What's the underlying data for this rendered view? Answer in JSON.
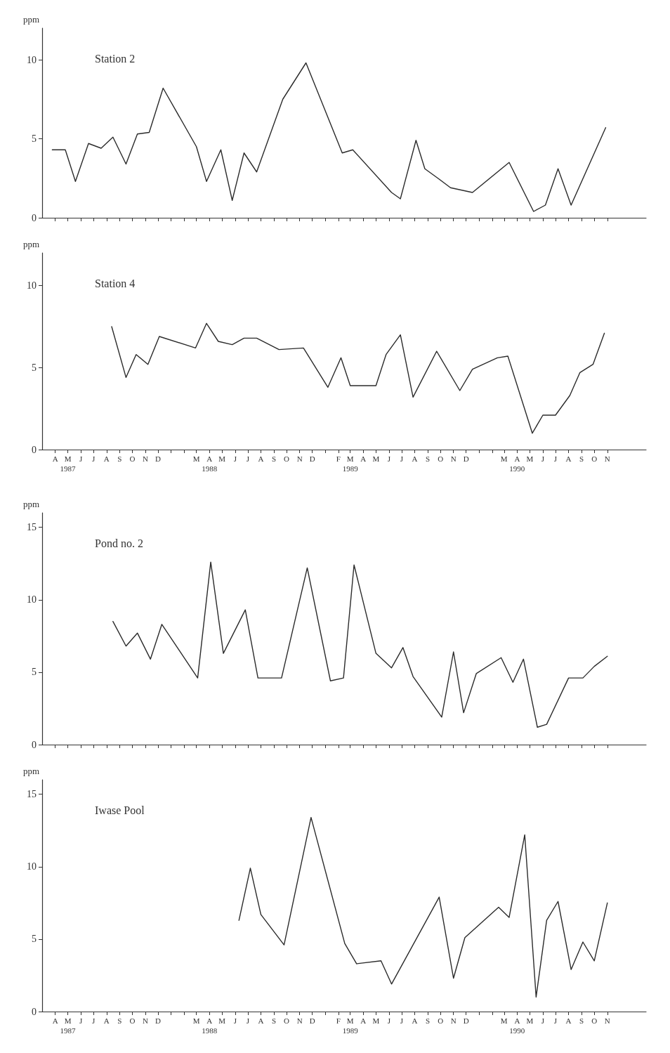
{
  "chart_data": [
    {
      "type": "line",
      "title": "Station 2",
      "ylabel": "ppm",
      "color": "#2b2b2b",
      "tick_labels": "y",
      "x": [
        "1987-03-25",
        "1987-04-25",
        "1987-05-19",
        "1987-06-19",
        "1987-07-19",
        "1987-08-16",
        "1987-09-16",
        "1987-10-13",
        "1987-11-10",
        "1987-12-13",
        "1988-03-01",
        "1988-03-25",
        "1988-04-28",
        "1988-05-25",
        "1988-06-22",
        "1988-07-22",
        "1988-09-22",
        "1988-11-16",
        "1989-02-10",
        "1989-03-07",
        "1989-06-07",
        "1989-06-28",
        "1989-08-04",
        "1989-08-25",
        "1989-09-25",
        "1989-10-25",
        "1989-12-16",
        "1990-03-13",
        "1990-05-10",
        "1990-06-07",
        "1990-07-07",
        "1990-08-07",
        "1990-10-28"
      ],
      "values": [
        4.3,
        4.3,
        2.3,
        4.7,
        4.4,
        5.1,
        3.4,
        5.3,
        5.4,
        8.2,
        4.5,
        2.3,
        4.3,
        1.1,
        4.1,
        2.9,
        7.5,
        9.8,
        4.1,
        4.3,
        1.6,
        1.2,
        4.9,
        3.1,
        2.5,
        1.9,
        1.6,
        3.5,
        0.4,
        0.8,
        3.1,
        0.8,
        5.7
      ],
      "xlim": [
        "1987-03",
        "1991-02"
      ],
      "ylim": [
        0,
        12
      ],
      "yticks": [
        0,
        5,
        10
      ],
      "xticks": [
        "1987-04",
        "1987-05",
        "1987-06",
        "1987-07",
        "1987-08",
        "1987-09",
        "1987-10",
        "1987-11",
        "1987-12",
        "1988-01",
        "1988-02",
        "1988-03",
        "1988-04",
        "1988-05",
        "1988-06",
        "1988-07",
        "1988-08",
        "1988-09",
        "1988-10",
        "1988-11",
        "1988-12",
        "1989-01",
        "1989-02",
        "1989-03",
        "1989-04",
        "1989-05",
        "1989-06",
        "1989-07",
        "1989-08",
        "1989-09",
        "1989-10",
        "1989-11",
        "1989-12",
        "1990-01",
        "1990-02",
        "1990-03",
        "1990-04",
        "1990-05",
        "1990-06",
        "1990-07",
        "1990-08",
        "1990-09",
        "1990-10",
        "1990-11"
      ]
    },
    {
      "type": "line",
      "title": "Station 4",
      "ylabel": "ppm",
      "color": "#2b2b2b",
      "x": [
        "1987-08-13",
        "1987-09-16",
        "1987-10-10",
        "1987-11-07",
        "1987-12-04",
        "1988-02-28",
        "1988-03-25",
        "1988-04-22",
        "1988-05-25",
        "1988-06-22",
        "1988-07-22",
        "1988-09-13",
        "1988-11-10",
        "1989-01-07",
        "1989-02-07",
        "1989-03-01",
        "1989-05-01",
        "1989-05-25",
        "1989-06-28",
        "1989-07-28",
        "1989-09-22",
        "1989-11-16",
        "1989-12-16",
        "1990-02-13",
        "1990-03-10",
        "1990-05-07",
        "1990-06-01",
        "1990-07-01",
        "1990-08-04",
        "1990-08-28",
        "1990-09-28",
        "1990-10-25"
      ],
      "values": [
        7.5,
        4.4,
        5.8,
        5.2,
        6.9,
        6.2,
        7.7,
        6.6,
        6.4,
        6.8,
        6.8,
        6.1,
        6.2,
        3.8,
        5.6,
        3.9,
        3.9,
        5.8,
        7.0,
        3.2,
        6.0,
        3.6,
        4.9,
        5.6,
        5.7,
        1.0,
        2.1,
        2.1,
        3.3,
        4.7,
        5.2,
        7.1
      ],
      "xlim": [
        "1987-03",
        "1991-02"
      ],
      "ylim": [
        0,
        12
      ],
      "yticks": [
        0,
        5,
        10
      ],
      "xticks": [
        {
          "value": "1987-04",
          "label": "A"
        },
        {
          "value": "1987-05",
          "label": "M\n1987"
        },
        {
          "value": "1987-06",
          "label": "J"
        },
        {
          "value": "1987-07",
          "label": "J"
        },
        {
          "value": "1987-08",
          "label": "A"
        },
        {
          "value": "1987-09",
          "label": "S"
        },
        {
          "value": "1987-10",
          "label": "O"
        },
        {
          "value": "1987-11",
          "label": "N"
        },
        {
          "value": "1987-12",
          "label": "D"
        },
        {
          "value": "1988-01",
          "label": null
        },
        {
          "value": "1988-02",
          "label": null
        },
        {
          "value": "1988-03",
          "label": "M"
        },
        {
          "value": "1988-04",
          "label": "A\n1988"
        },
        {
          "value": "1988-05",
          "label": "M"
        },
        {
          "value": "1988-06",
          "label": "J"
        },
        {
          "value": "1988-07",
          "label": "J"
        },
        {
          "value": "1988-08",
          "label": "A"
        },
        {
          "value": "1988-09",
          "label": "S"
        },
        {
          "value": "1988-10",
          "label": "O"
        },
        {
          "value": "1988-11",
          "label": "N"
        },
        {
          "value": "1988-12",
          "label": "D"
        },
        {
          "value": "1989-01",
          "label": null
        },
        {
          "value": "1989-02",
          "label": "F"
        },
        {
          "value": "1989-03",
          "label": "M\n1989"
        },
        {
          "value": "1989-04",
          "label": "A"
        },
        {
          "value": "1989-05",
          "label": "M"
        },
        {
          "value": "1989-06",
          "label": "J"
        },
        {
          "value": "1989-07",
          "label": "J"
        },
        {
          "value": "1989-08",
          "label": "A"
        },
        {
          "value": "1989-09",
          "label": "S"
        },
        {
          "value": "1989-10",
          "label": "O"
        },
        {
          "value": "1989-11",
          "label": "N"
        },
        {
          "value": "1989-12",
          "label": "D"
        },
        {
          "value": "1990-01",
          "label": null
        },
        {
          "value": "1990-02",
          "label": null
        },
        {
          "value": "1990-03",
          "label": "M"
        },
        {
          "value": "1990-04",
          "label": "A\n1990"
        },
        {
          "value": "1990-05",
          "label": "M"
        },
        {
          "value": "1990-06",
          "label": "J"
        },
        {
          "value": "1990-07",
          "label": "J"
        },
        {
          "value": "1990-08",
          "label": "A"
        },
        {
          "value": "1990-09",
          "label": "S"
        },
        {
          "value": "1990-10",
          "label": "O"
        },
        {
          "value": "1990-11",
          "label": "N"
        }
      ]
    },
    {
      "type": "line",
      "title": "Pond no. 2",
      "ylabel": "ppm",
      "color": "#2b2b2b",
      "tick_labels": "y",
      "x": [
        "1987-08-16",
        "1987-09-16",
        "1987-10-13",
        "1987-11-13",
        "1987-12-10",
        "1988-03-04",
        "1988-04-04",
        "1988-05-04",
        "1988-06-25",
        "1988-07-25",
        "1988-09-19",
        "1988-11-19",
        "1989-01-13",
        "1989-02-13",
        "1989-03-10",
        "1989-05-01",
        "1989-06-07",
        "1989-07-04",
        "1989-07-28",
        "1989-10-04",
        "1989-11-01",
        "1989-11-25",
        "1989-12-25",
        "1990-02-22",
        "1990-03-22",
        "1990-04-16",
        "1990-05-19",
        "1990-06-10",
        "1990-08-01",
        "1990-09-04",
        "1990-10-01",
        "1990-11-01"
      ],
      "values": [
        8.5,
        6.8,
        7.7,
        5.9,
        8.3,
        4.6,
        12.6,
        6.3,
        9.3,
        4.6,
        4.6,
        12.2,
        4.4,
        4.6,
        12.4,
        6.3,
        5.3,
        6.7,
        4.7,
        1.9,
        6.4,
        2.2,
        4.9,
        6.0,
        4.3,
        5.9,
        1.2,
        1.4,
        4.6,
        4.6,
        5.4,
        6.1
      ],
      "xlim": [
        "1987-03",
        "1991-02"
      ],
      "ylim": [
        0,
        16
      ],
      "yticks": [
        0,
        5,
        10,
        15
      ],
      "xticks": [
        "1987-04",
        "1987-05",
        "1987-06",
        "1987-07",
        "1987-08",
        "1987-09",
        "1987-10",
        "1987-11",
        "1987-12",
        "1988-01",
        "1988-02",
        "1988-03",
        "1988-04",
        "1988-05",
        "1988-06",
        "1988-07",
        "1988-08",
        "1988-09",
        "1988-10",
        "1988-11",
        "1988-12",
        "1989-01",
        "1989-02",
        "1989-03",
        "1989-04",
        "1989-05",
        "1989-06",
        "1989-07",
        "1989-08",
        "1989-09",
        "1989-10",
        "1989-11",
        "1989-12",
        "1990-01",
        "1990-02",
        "1990-03",
        "1990-04",
        "1990-05",
        "1990-06",
        "1990-07",
        "1990-08",
        "1990-09",
        "1990-10",
        "1990-11"
      ]
    },
    {
      "type": "line",
      "title": "Iwase Pool",
      "ylabel": "ppm",
      "color": "#2b2b2b",
      "x": [
        "1988-06-10",
        "1988-07-07",
        "1988-08-01",
        "1988-09-25",
        "1988-11-28",
        "1989-02-16",
        "1989-03-16",
        "1989-05-13",
        "1989-06-07",
        "1989-09-28",
        "1989-11-01",
        "1989-11-28",
        "1990-02-16",
        "1990-03-13",
        "1990-04-19",
        "1990-05-16",
        "1990-06-10",
        "1990-07-07",
        "1990-08-07",
        "1990-09-04",
        "1990-10-01",
        "1990-11-01"
      ],
      "values": [
        6.3,
        9.9,
        6.7,
        4.6,
        13.4,
        4.7,
        3.3,
        3.5,
        1.9,
        7.9,
        2.3,
        5.1,
        7.2,
        6.5,
        12.2,
        1.0,
        6.3,
        7.6,
        2.9,
        4.8,
        3.5,
        7.5
      ],
      "xlim": [
        "1987-03",
        "1991-02"
      ],
      "ylim": [
        0,
        16
      ],
      "yticks": [
        0,
        5,
        10,
        15
      ],
      "xticks": [
        {
          "value": "1987-04",
          "label": "A"
        },
        {
          "value": "1987-05",
          "label": "M\n1987"
        },
        {
          "value": "1987-06",
          "label": "J"
        },
        {
          "value": "1987-07",
          "label": "J"
        },
        {
          "value": "1987-08",
          "label": "A"
        },
        {
          "value": "1987-09",
          "label": "S"
        },
        {
          "value": "1987-10",
          "label": "O"
        },
        {
          "value": "1987-11",
          "label": "N"
        },
        {
          "value": "1987-12",
          "label": "D"
        },
        {
          "value": "1988-01",
          "label": null
        },
        {
          "value": "1988-02",
          "label": null
        },
        {
          "value": "1988-03",
          "label": "M"
        },
        {
          "value": "1988-04",
          "label": "A\n1988"
        },
        {
          "value": "1988-05",
          "label": "M"
        },
        {
          "value": "1988-06",
          "label": "J"
        },
        {
          "value": "1988-07",
          "label": "J"
        },
        {
          "value": "1988-08",
          "label": "A"
        },
        {
          "value": "1988-09",
          "label": "S"
        },
        {
          "value": "1988-10",
          "label": "O"
        },
        {
          "value": "1988-11",
          "label": "N"
        },
        {
          "value": "1988-12",
          "label": "D"
        },
        {
          "value": "1989-01",
          "label": null
        },
        {
          "value": "1989-02",
          "label": "F"
        },
        {
          "value": "1989-03",
          "label": "M\n1989"
        },
        {
          "value": "1989-04",
          "label": "A"
        },
        {
          "value": "1989-05",
          "label": "M"
        },
        {
          "value": "1989-06",
          "label": "J"
        },
        {
          "value": "1989-07",
          "label": "J"
        },
        {
          "value": "1989-08",
          "label": "A"
        },
        {
          "value": "1989-09",
          "label": "S"
        },
        {
          "value": "1989-10",
          "label": "O"
        },
        {
          "value": "1989-11",
          "label": "N"
        },
        {
          "value": "1989-12",
          "label": "D"
        },
        {
          "value": "1990-01",
          "label": null
        },
        {
          "value": "1990-02",
          "label": null
        },
        {
          "value": "1990-03",
          "label": "M"
        },
        {
          "value": "1990-04",
          "label": "A\n1990"
        },
        {
          "value": "1990-05",
          "label": "M"
        },
        {
          "value": "1990-06",
          "label": "J"
        },
        {
          "value": "1990-07",
          "label": "J"
        },
        {
          "value": "1990-08",
          "label": "A"
        },
        {
          "value": "1990-09",
          "label": "S"
        },
        {
          "value": "1990-10",
          "label": "O"
        },
        {
          "value": "1990-11",
          "label": "N"
        }
      ]
    }
  ]
}
